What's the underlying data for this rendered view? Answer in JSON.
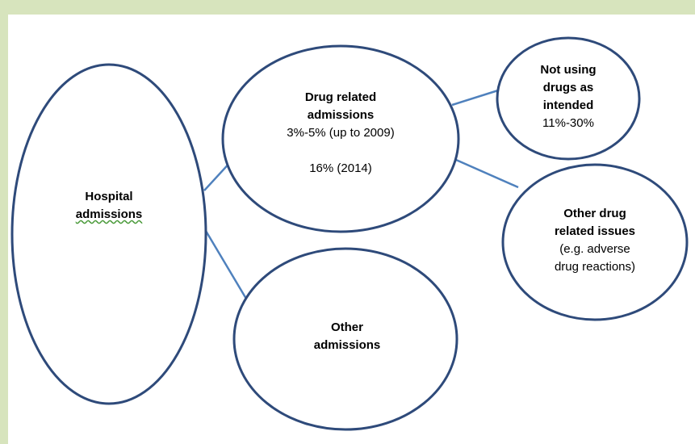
{
  "background_color": "#d7e4bd",
  "stroke_color": "#2e4a7a",
  "connector_color": "#4f81bd",
  "nodes": {
    "hospital": {
      "line1": "Hospital",
      "line2": "admissions"
    },
    "drug_related": {
      "line1": "Drug related",
      "line2": "admissions",
      "stat1": "3%-5% (up to 2009)",
      "stat2": "16% (2014)"
    },
    "other_admissions": {
      "line1": "Other",
      "line2": "admissions"
    },
    "not_using": {
      "line1": "Not using",
      "line2": "drugs as",
      "line3": "intended",
      "stat": "11%-30%"
    },
    "other_drug": {
      "line1": "Other drug",
      "line2": "related issues",
      "detail1": "(e.g. adverse",
      "detail2": "drug reactions)"
    }
  }
}
